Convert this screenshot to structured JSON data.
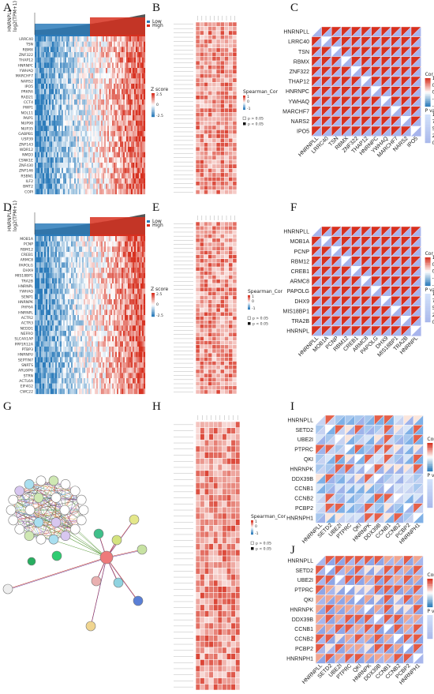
{
  "panels": {
    "A": {
      "label": "A",
      "y_expr": "HNRNPLL",
      "y_unit": "log2(TPM+1)",
      "legend": {
        "low": "Low",
        "high": "High",
        "zlabel": "Z score",
        "ticks": [
          "2.5",
          "0",
          "-2.5"
        ]
      },
      "genes": [
        "LRRC40",
        "TSN",
        "RBMX",
        "ZNF322",
        "THAP12",
        "HNRNPC",
        "YWHAQ",
        "MARCHF7",
        "NARS2",
        "IPO5",
        "PRKRA",
        "RAD21",
        "CCT4",
        "PWP1",
        "NOL11",
        "PAIP1",
        "NUP98",
        "NUP35",
        "GABPB1",
        "USP39",
        "ZNF143",
        "WDR12",
        "NMD3",
        "CSNK1E",
        "ZNF430",
        "ZNF146",
        "RSBN1",
        "ILF2",
        "BMT2",
        "COPI"
      ]
    },
    "B": {
      "label": "B",
      "legend_title": "Spearman_Cor",
      "legend_ticks": [
        "1",
        "0",
        "-1"
      ],
      "pval_key": [
        "p > 0.05",
        "p < 0.05"
      ]
    },
    "C": {
      "label": "C",
      "genes": [
        "HNRNPLL",
        "LRRC40",
        "TSN",
        "RBMX",
        "ZNF322",
        "THAP12",
        "HNRNPC",
        "YWHAQ",
        "MARCHF7",
        "NARS2",
        "IPO5"
      ],
      "cor_title": "Cor",
      "cor_ticks": [
        "1.0",
        "0.5",
        "0.0",
        "-0.5",
        "-1.0"
      ],
      "p_title": "P value",
      "p_ticks": [
        "1.0e-07",
        "7.5e-08",
        "5.0e-08",
        "2.5e-08",
        "0.0e+00"
      ]
    },
    "D": {
      "label": "D",
      "y_expr": "HNRNPLL",
      "y_unit": "log2(TPM+1)",
      "legend": {
        "low": "Low",
        "high": "High",
        "zlabel": "Z score",
        "ticks": [
          "2.5",
          "0",
          "-2.5"
        ]
      },
      "genes": [
        "MOB1A",
        "PCNP",
        "RBM12",
        "CREB1",
        "ARMC8",
        "PAPOLG",
        "DHX9",
        "MIS18BP1",
        "TRA2B",
        "HNRNPL",
        "YWHAQ",
        "SENP1",
        "HNRNPK",
        "PHF6A",
        "HNRNPL",
        "ACTR2",
        "ACTR3",
        "NEDD1",
        "NEFRO",
        "SLC4A1AP",
        "PPP1R12A",
        "PTBP3",
        "HNRNPU",
        "SEPTIN7",
        "SNRTS",
        "ARL6IP6",
        "STRN",
        "ACTL6A",
        "EIF4G2",
        "CWC22"
      ]
    },
    "E": {
      "label": "E",
      "legend_title": "Spearman_Cor",
      "legend_ticks": [
        "1",
        "0",
        "-1"
      ],
      "pval_key": [
        "p > 0.05",
        "p < 0.05"
      ]
    },
    "F": {
      "label": "F",
      "genes": [
        "HNRNPLL",
        "MOB1A",
        "PCNP",
        "RBM12",
        "CREB1",
        "ARMC8",
        "PAPOLG",
        "DHX9",
        "MIS18BP1",
        "TRA2B",
        "HNRNPL"
      ],
      "cor_title": "Cor",
      "cor_ticks": [
        "1.0",
        "0.5",
        "0.0",
        "-0.5",
        "-1.0"
      ],
      "p_title": "P value",
      "p_ticks": [
        "1.0e-07",
        "7.5e-08",
        "5.0e-08",
        "2.5e-08",
        "0.0e+00"
      ]
    },
    "G": {
      "label": "G"
    },
    "H": {
      "label": "H",
      "legend_title": "Spearman_Cor",
      "legend_ticks": [
        "1",
        "0",
        "-1"
      ],
      "pval_key": [
        "p > 0.05",
        "p < 0.05"
      ]
    },
    "I": {
      "label": "I",
      "genes": [
        "HNRNPLL",
        "SETD2",
        "UBE2I",
        "PTPRC",
        "QKI",
        "HNRNPK",
        "DDX39B",
        "CCNB1",
        "CCNB2",
        "PCBP2",
        "HNRNPH1"
      ],
      "cor_title": "Cor",
      "cor_ticks": [
        "1.0",
        "0.5",
        "0.0",
        "-0.5",
        "-1.0"
      ],
      "p_title": "P value",
      "p_ticks": [
        "0.5",
        "0.4",
        "0.3",
        "0.2",
        "0.1",
        "0.0"
      ]
    },
    "J": {
      "label": "J",
      "genes": [
        "HNRNPLL",
        "SETD2",
        "UBE2I",
        "PTPRC",
        "QKI",
        "HNRNPK",
        "DDX39B",
        "CCNB1",
        "CCNB2",
        "PCBP2",
        "HNRNPH1"
      ],
      "cor_title": "Cor",
      "cor_ticks": [
        "1.0",
        "0.5",
        "0.0",
        "-0.5",
        "-1.0"
      ],
      "p_title": "P value",
      "p_ticks": [
        "0.006",
        "0.004",
        "0.002",
        "0.000"
      ]
    }
  },
  "colors": {
    "red": "#d7301f",
    "blue": "#2b7bba",
    "lightblue": "#8fb8e8",
    "lavender": "#a7b4ec",
    "white": "#ffffff"
  }
}
